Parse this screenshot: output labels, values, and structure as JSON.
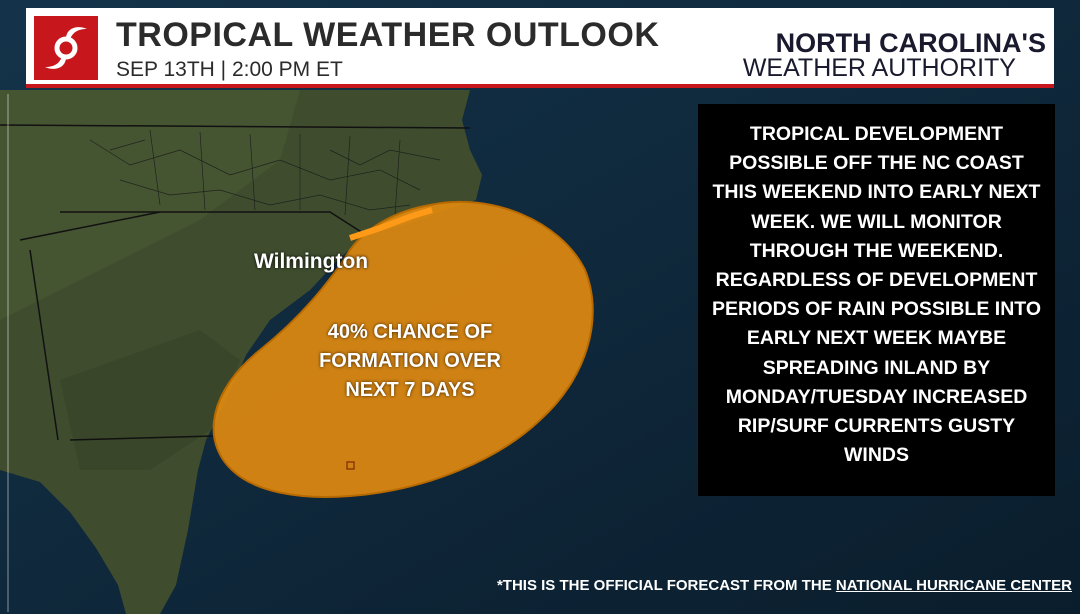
{
  "header": {
    "title": "TROPICAL WEATHER OUTLOOK",
    "subtitle": "SEP 13TH | 2:00 PM ET",
    "brand_line1": "NORTH CAROLINA'S",
    "brand_line2": "WEATHER AUTHORITY"
  },
  "map": {
    "city_label": "Wilmington",
    "area_label": "40% CHANCE OF FORMATION OVER NEXT 7 DAYS",
    "chance_percent": 40,
    "area_color": "#e08a10",
    "ocean_color": "#0f2a3e",
    "land_color": "#3d4a2a"
  },
  "info_box": {
    "text": "TROPICAL DEVELOPMENT POSSIBLE OFF THE NC COAST THIS WEEKEND INTO EARLY NEXT WEEK. WE WILL MONITOR THROUGH THE WEEKEND. REGARDLESS OF DEVELOPMENT PERIODS OF RAIN POSSIBLE INTO EARLY NEXT WEEK MAYBE SPREADING INLAND BY MONDAY/TUESDAY INCREASED RIP/SURF CURRENTS GUSTY WINDS"
  },
  "footer": {
    "prefix": "*THIS IS THE OFFICIAL FORECAST FROM THE ",
    "link": "NATIONAL HURRICANE CENTER"
  },
  "colors": {
    "accent": "#c8161d",
    "header_bg": "#ffffff"
  },
  "icons": {
    "logo": "hurricane-icon"
  }
}
